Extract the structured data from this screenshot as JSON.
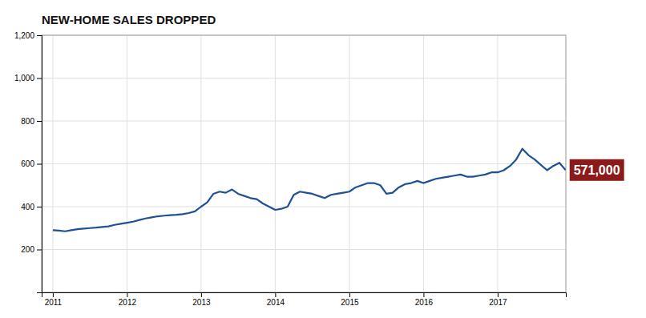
{
  "chart_data": {
    "type": "line",
    "title": "NEW-HOME SALES DROPPED",
    "x": [
      2011.0,
      2011.083,
      2011.167,
      2011.25,
      2011.333,
      2011.417,
      2011.5,
      2011.583,
      2011.667,
      2011.75,
      2011.833,
      2011.917,
      2012.0,
      2012.083,
      2012.167,
      2012.25,
      2012.333,
      2012.417,
      2012.5,
      2012.583,
      2012.667,
      2012.75,
      2012.833,
      2012.917,
      2013.0,
      2013.083,
      2013.167,
      2013.25,
      2013.333,
      2013.417,
      2013.5,
      2013.583,
      2013.667,
      2013.75,
      2013.833,
      2013.917,
      2014.0,
      2014.083,
      2014.167,
      2014.25,
      2014.333,
      2014.417,
      2014.5,
      2014.583,
      2014.667,
      2014.75,
      2014.833,
      2014.917,
      2015.0,
      2015.083,
      2015.167,
      2015.25,
      2015.333,
      2015.417,
      2015.5,
      2015.583,
      2015.667,
      2015.75,
      2015.833,
      2015.917,
      2016.0,
      2016.083,
      2016.167,
      2016.25,
      2016.333,
      2016.417,
      2016.5,
      2016.583,
      2016.667,
      2016.75,
      2016.833,
      2016.917,
      2017.0,
      2017.083,
      2017.167,
      2017.25,
      2017.333,
      2017.417,
      2017.5,
      2017.583,
      2017.667,
      2017.75,
      2017.833,
      2017.917
    ],
    "values": [
      290,
      288,
      285,
      290,
      295,
      298,
      300,
      302,
      305,
      308,
      315,
      320,
      325,
      330,
      338,
      345,
      350,
      355,
      358,
      360,
      362,
      365,
      370,
      378,
      400,
      420,
      460,
      470,
      465,
      480,
      460,
      450,
      440,
      435,
      415,
      400,
      385,
      390,
      400,
      455,
      470,
      465,
      460,
      450,
      440,
      455,
      460,
      465,
      470,
      490,
      500,
      510,
      510,
      500,
      460,
      465,
      490,
      505,
      510,
      520,
      510,
      520,
      530,
      535,
      540,
      545,
      550,
      540,
      540,
      545,
      550,
      560,
      560,
      570,
      590,
      620,
      670,
      640,
      620,
      595,
      570,
      590,
      605,
      571
    ],
    "color": "#1f5096",
    "xlim": [
      2010.85,
      2017.92
    ],
    "xticks": [
      2011,
      2012,
      2013,
      2014,
      2015,
      2016,
      2017
    ],
    "ylim": [
      0,
      1200
    ],
    "yticks": [
      200,
      400,
      600,
      800,
      {
        "value": 1000,
        "label": "1,000"
      },
      {
        "value": 1200,
        "label": "1,200"
      }
    ],
    "grid": true,
    "annotations": [
      {
        "text": "571,000",
        "x": 2017.917,
        "y": 571,
        "color": "#8b1a1a"
      }
    ]
  }
}
